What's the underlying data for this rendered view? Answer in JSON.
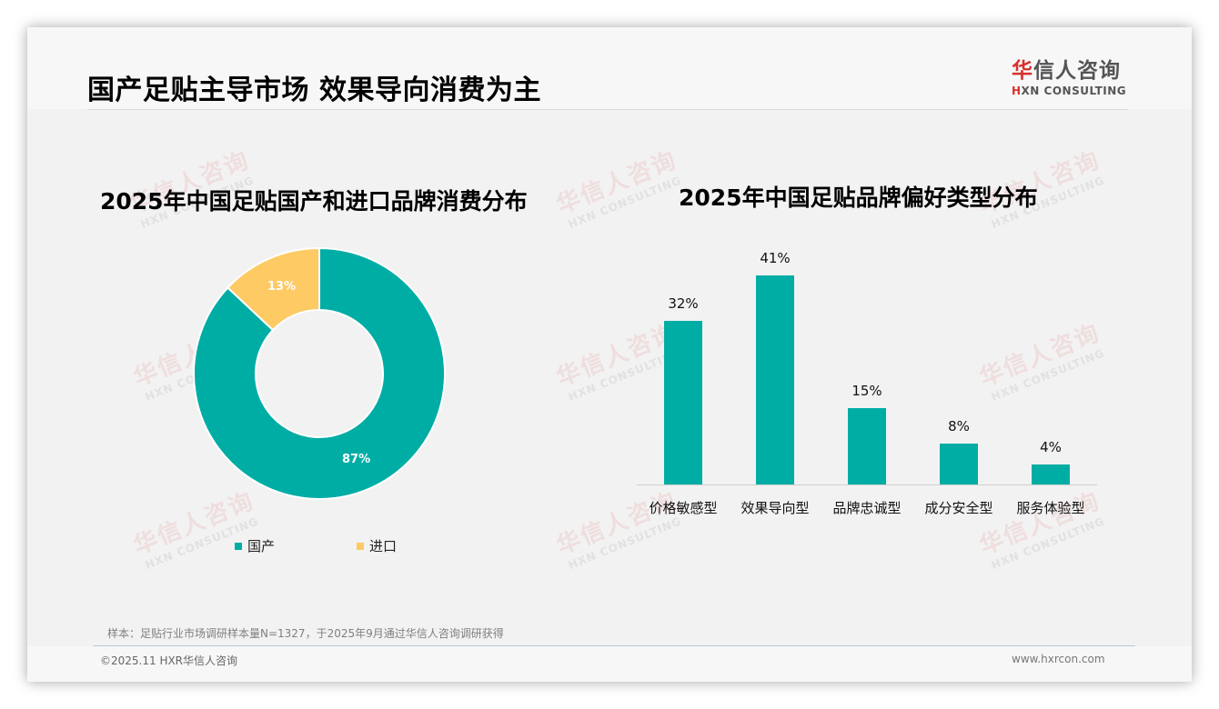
{
  "header": {
    "title": "国产足贴主导市场 效果导向消费为主",
    "logo": {
      "cn_accent": "华",
      "cn_rest": "信人咨询",
      "en_accent": "H",
      "en_rest": "XN CONSULTING"
    }
  },
  "watermark": {
    "cn": "华信人咨询",
    "en": "HXN CONSULTING"
  },
  "colors": {
    "teal": "#00ada5",
    "yellow": "#fdca64",
    "brand_red": "#d8312d"
  },
  "chart_data": [
    {
      "type": "pie",
      "variant": "donut",
      "title": "2025年中国足贴国产和进口品牌消费分布",
      "categories": [
        "国产",
        "进口"
      ],
      "values": [
        87,
        13
      ],
      "labels": [
        "87%",
        "13%"
      ],
      "colors": [
        "#00ada5",
        "#fdca64"
      ],
      "legend_position": "bottom"
    },
    {
      "type": "bar",
      "title": "2025年中国足贴品牌偏好类型分布",
      "categories": [
        "价格敏感型",
        "效果导向型",
        "品牌忠诚型",
        "成分安全型",
        "服务体验型"
      ],
      "values": [
        32,
        41,
        15,
        8,
        4
      ],
      "labels": [
        "32%",
        "41%",
        "15%",
        "8%",
        "4%"
      ],
      "xlabel": "",
      "ylabel": "",
      "ylim": [
        0,
        45
      ],
      "grid": false,
      "color": "#00ada5"
    }
  ],
  "footer": {
    "note": "样本：足贴行业市场调研样本量N=1327，于2025年9月通过华信人咨询调研获得",
    "copyright": "©2025.11 HXR华信人咨询",
    "website": "www.hxrcon.com"
  }
}
